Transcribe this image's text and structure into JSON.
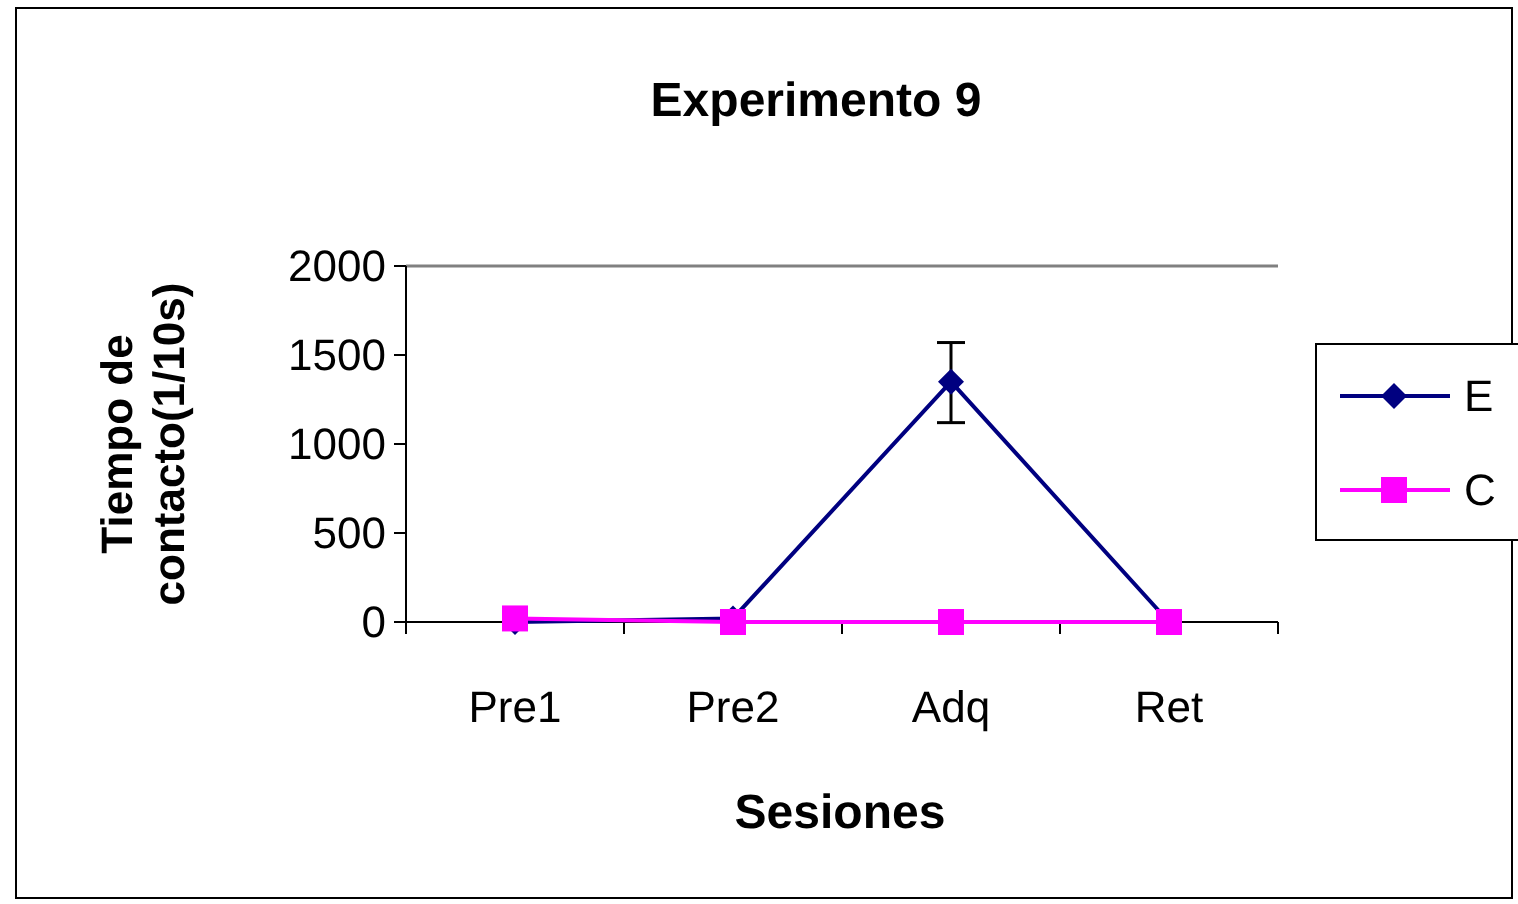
{
  "chart_data": {
    "type": "line",
    "title": "Experimento 9",
    "xlabel": "Sesiones",
    "ylabel": "Tiempo de contacto(1/10s)",
    "categories": [
      "Pre1",
      "Pre2",
      "Adq",
      "Ret"
    ],
    "series": [
      {
        "name": "E",
        "color": "#000080",
        "marker": "diamond",
        "values": [
          0,
          20,
          1350,
          0
        ],
        "errors": [
          null,
          null,
          [
            1120,
            1570
          ],
          null
        ]
      },
      {
        "name": "C",
        "color": "#ff00ff",
        "marker": "square",
        "values": [
          20,
          0,
          0,
          0
        ]
      }
    ],
    "ylim": [
      0,
      2000
    ],
    "yticks": [
      0,
      500,
      1000,
      1500,
      2000
    ],
    "grid": false,
    "legend": "right"
  }
}
